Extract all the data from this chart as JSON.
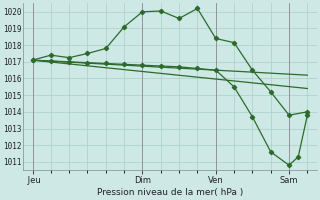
{
  "xlabel": "Pression niveau de la mer( hPa )",
  "bg_color": "#cde8e5",
  "grid_color": "#aacfcc",
  "line_color": "#2d6b2d",
  "ylim": [
    1010.5,
    1020.5
  ],
  "yticks": [
    1011,
    1012,
    1013,
    1014,
    1015,
    1016,
    1017,
    1018,
    1019,
    1020
  ],
  "xtick_labels": [
    " Jeu",
    "Dim",
    "Ven",
    "Sam"
  ],
  "xtick_positions": [
    0,
    24,
    40,
    56
  ],
  "xlim": [
    -2,
    62
  ],
  "series1_x": [
    0,
    4,
    8,
    12,
    16,
    20,
    24,
    28,
    32,
    36,
    40,
    44,
    48,
    52,
    56,
    60
  ],
  "series1_y": [
    1017.1,
    1017.4,
    1017.25,
    1017.5,
    1017.8,
    1019.1,
    1020.0,
    1020.05,
    1019.6,
    1020.2,
    1018.4,
    1018.15,
    1016.5,
    1015.2,
    1013.8,
    1014.0
  ],
  "series2_x": [
    0,
    60
  ],
  "series2_y": [
    1017.1,
    1016.2
  ],
  "series3_x": [
    0,
    60
  ],
  "series3_y": [
    1017.1,
    1015.4
  ],
  "series4_x": [
    0,
    4,
    8,
    12,
    16,
    20,
    24,
    28,
    32,
    36,
    40,
    44,
    48,
    52,
    56,
    58,
    60
  ],
  "series4_y": [
    1017.1,
    1017.05,
    1017.0,
    1016.95,
    1016.9,
    1016.85,
    1016.8,
    1016.75,
    1016.7,
    1016.6,
    1016.5,
    1015.5,
    1013.7,
    1011.6,
    1010.8,
    1011.3,
    1013.8
  ],
  "vline_x": [
    0,
    24,
    40,
    56
  ],
  "marker": "D",
  "markersize": 2.2,
  "linewidth": 0.9
}
